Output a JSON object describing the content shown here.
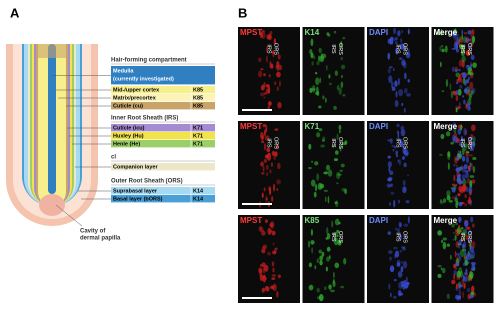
{
  "panel_a": {
    "label": "A",
    "hair_forming": {
      "title": "Hair-forming compartment",
      "rows": [
        {
          "name": "Medulla",
          "note": "(currently investigated)"
        },
        {
          "name": "Mid-/upper cortex",
          "marker": "K85"
        },
        {
          "name": "Matrix/precortex",
          "marker": "K85"
        },
        {
          "name": "Cuticle (cu)",
          "marker": "K85"
        }
      ]
    },
    "irs": {
      "title": "Inner Root Sheath (IRS)",
      "rows": [
        {
          "name": "Cuticle (icu)",
          "marker": "K71"
        },
        {
          "name": "Huxley (Hu)",
          "marker": "K71"
        },
        {
          "name": "Henle (He)",
          "marker": "K71"
        }
      ]
    },
    "cl": {
      "title": "cl",
      "rows": [
        {
          "name": "Companion layer"
        }
      ]
    },
    "ors": {
      "title": "Outer Root Sheath (ORS)",
      "rows": [
        {
          "name": "Suprabasal layer",
          "marker": "K14"
        },
        {
          "name": "Basal layer (bORS)",
          "marker": "K14"
        }
      ]
    },
    "cavity_label": [
      "Cavity of",
      "dermal papilla"
    ]
  },
  "panel_b": {
    "label": "B",
    "rows": [
      {
        "panels": [
          {
            "label": "MPST",
            "annotations": [
              "IRS",
              "ORS"
            ]
          },
          {
            "label": "K14",
            "annotations": [
              "IRS",
              "ORS"
            ]
          },
          {
            "label": "DAPI",
            "annotations": [
              "IRS",
              "ORS"
            ]
          },
          {
            "label": "Merge",
            "annotations": [
              "IRS",
              "ORS"
            ]
          }
        ]
      },
      {
        "panels": [
          {
            "label": "MPST",
            "annotations": [
              "IRS",
              "ORS"
            ]
          },
          {
            "label": "K71",
            "annotations": [
              "IRS",
              "ORS"
            ]
          },
          {
            "label": "DAPI",
            "annotations": [
              "IRS",
              "ORS"
            ]
          },
          {
            "label": "Merge",
            "annotations": [
              "IRS",
              "ORS"
            ]
          }
        ]
      },
      {
        "panels": [
          {
            "label": "MPST",
            "annotations": []
          },
          {
            "label": "K85",
            "annotations": [
              "IRS",
              "ORS"
            ]
          },
          {
            "label": "DAPI",
            "annotations": [
              "IRS",
              "ORS"
            ]
          },
          {
            "label": "Merge",
            "annotations": [
              "IRS",
              "ORS"
            ]
          }
        ]
      }
    ]
  }
}
